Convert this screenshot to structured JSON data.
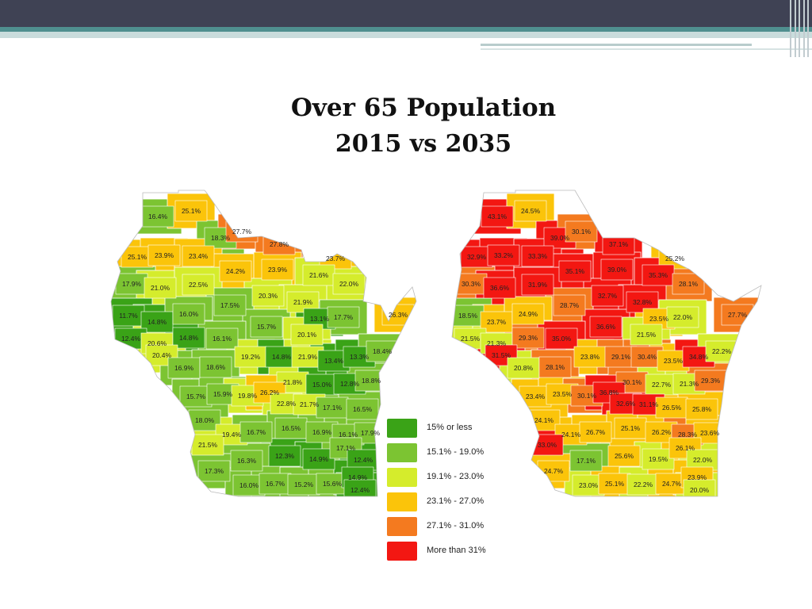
{
  "title": {
    "line1": "Over 65 Population",
    "line2": "2015 vs 2035"
  },
  "colors": {
    "c1": "#3aa317",
    "c2": "#7cc432",
    "c3": "#d5ec2c",
    "c4": "#fbc40a",
    "c5": "#f47a1f",
    "c6": "#f31712"
  },
  "legend": [
    {
      "label": "15% or less",
      "color": "#3aa317"
    },
    {
      "label": "15.1% - 19.0%",
      "color": "#7cc432"
    },
    {
      "label": "19.1% - 23.0%",
      "color": "#d5ec2c"
    },
    {
      "label": "23.1% - 27.0%",
      "color": "#fbc40a"
    },
    {
      "label": "27.1% - 31.0%",
      "color": "#f47a1f"
    },
    {
      "label": "More than 31%",
      "color": "#f31712"
    }
  ],
  "map_2015": [
    "16.4%",
    "25.1%",
    "18.3%",
    "27.7%",
    "27.8%",
    "25.1%",
    "23.9%",
    "23.4%",
    "24.2%",
    "23.9%",
    "23.7%",
    "21.6%",
    "22.0%",
    "17.9%",
    "21.0%",
    "22.5%",
    "20.3%",
    "21.9%",
    "17.5%",
    "11.7%",
    "14.8%",
    "16.0%",
    "13.1%",
    "17.7%",
    "26.3%",
    "15.7%",
    "20.1%",
    "12.4%",
    "20.6%",
    "14.8%",
    "16.1%",
    "20.4%",
    "19.2%",
    "14.8%",
    "21.9%",
    "13.4%",
    "13.3%",
    "18.4%",
    "16.9%",
    "18.6%",
    "21.8%",
    "15.0%",
    "12.8%",
    "18.8%",
    "15.7%",
    "15.9%",
    "19.8%",
    "26.2%",
    "22.8%",
    "21.7%",
    "17.1%",
    "16.5%",
    "18.0%",
    "19.4%",
    "16.7%",
    "16.5%",
    "16.9%",
    "16.1%",
    "17.9%",
    "21.5%",
    "12.3%",
    "14.9%",
    "17.1%",
    "12.4%",
    "16.3%",
    "17.3%",
    "16.0%",
    "16.7%",
    "15.2%",
    "15.6%",
    "14.9%",
    "12.4%"
  ],
  "map_2035": [
    "43.1%",
    "24.5%",
    "39.0%",
    "30.1%",
    "37.1%",
    "32.9%",
    "33.2%",
    "33.3%",
    "35.1%",
    "39.0%",
    "25.2%",
    "35.3%",
    "28.1%",
    "30.3%",
    "36.6%",
    "31.9%",
    "32.7%",
    "32.8%",
    "28.7%",
    "18.5%",
    "23.7%",
    "24.9%",
    "23.5%",
    "22.0%",
    "27.7%",
    "36.6%",
    "21.5%",
    "21.5%",
    "21.3%",
    "29.3%",
    "35.0%",
    "31.5%",
    "23.8%",
    "29.1%",
    "30.4%",
    "23.5%",
    "34.8%",
    "22.2%",
    "20.8%",
    "28.1%",
    "30.1%",
    "22.7%",
    "21.3%",
    "29.3%",
    "23.4%",
    "23.5%",
    "30.1%",
    "36.8%",
    "32.6%",
    "31.1%",
    "26.5%",
    "25.8%",
    "24.1%",
    "24.1%",
    "26.7%",
    "25.1%",
    "26.2%",
    "28.3%",
    "23.6%",
    "33.0%",
    "25.6%",
    "19.5%",
    "26.1%",
    "22.0%",
    "17.1%",
    "24.7%",
    "23.0%",
    "25.1%",
    "22.2%",
    "24.7%",
    "23.9%",
    "20.0%"
  ]
}
